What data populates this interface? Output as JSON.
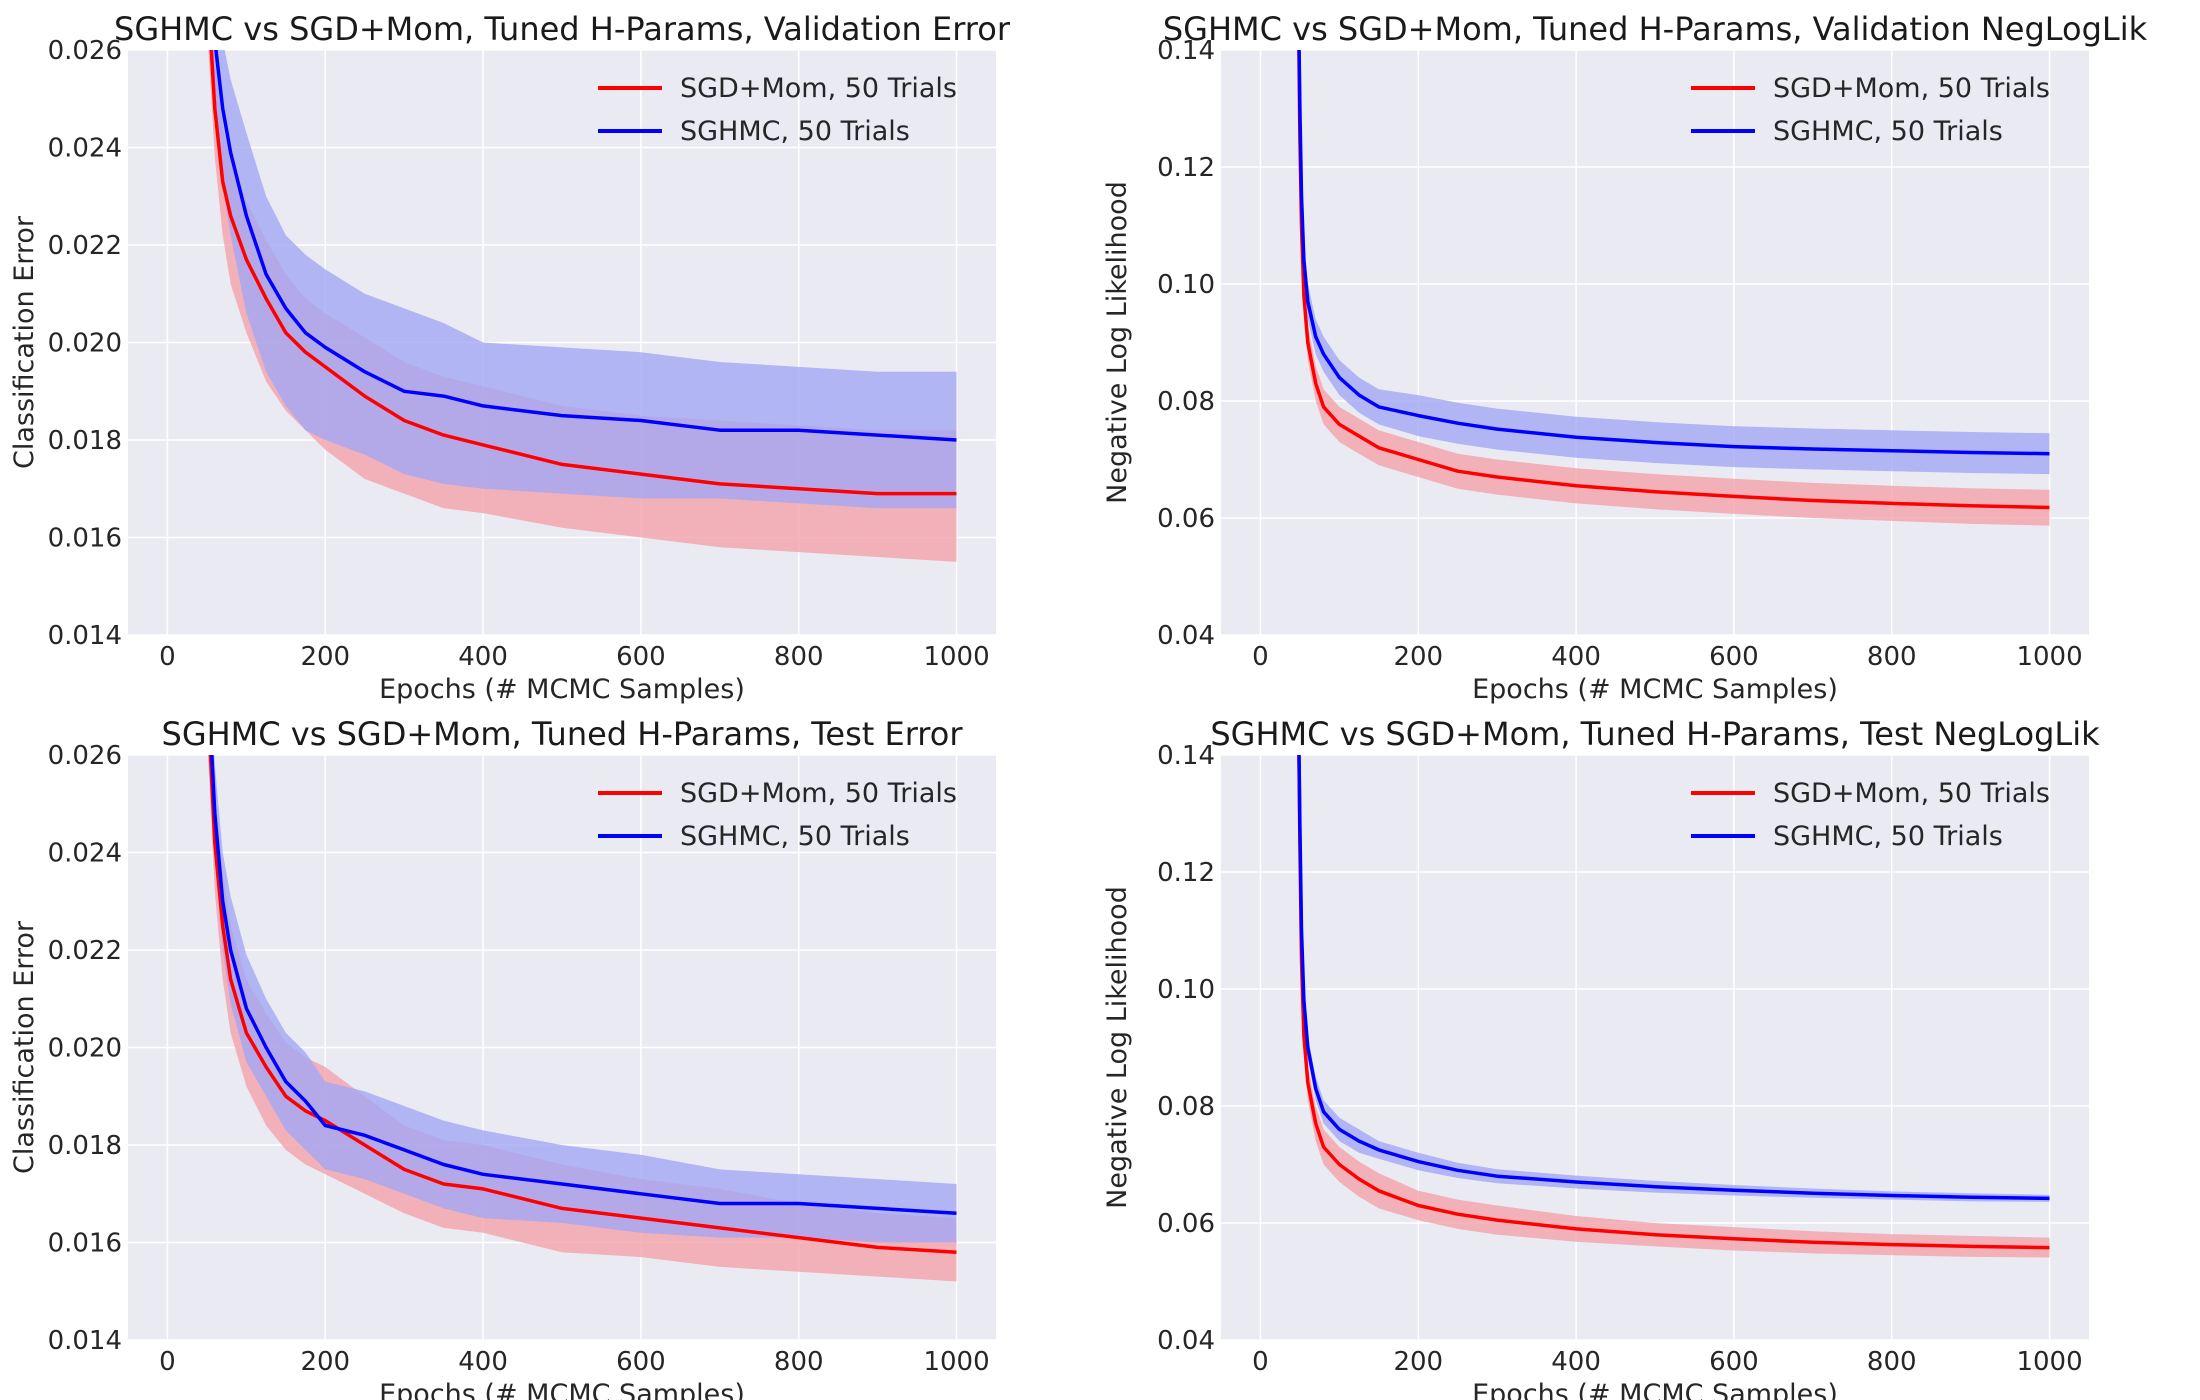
{
  "colors": {
    "panel_background": "#eaeaf2",
    "grid": "#ffffff",
    "sgd_line": "#ff0000",
    "sgd_band": "#f4a3aa",
    "sghmc_line": "#0000ff",
    "sghmc_band": "#a3a8f4"
  },
  "chart_data": [
    {
      "type": "line",
      "title": "SGHMC vs SGD+Mom, Tuned H-Params, Validation Error",
      "xlabel": "Epochs (# MCMC Samples)",
      "ylabel": "Classification Error",
      "xlim": [
        -50,
        1050
      ],
      "ylim": [
        0.014,
        0.026
      ],
      "xticks": [
        0,
        200,
        400,
        600,
        800,
        1000
      ],
      "xtick_labels": [
        "0",
        "200",
        "400",
        "600",
        "800",
        "1000"
      ],
      "yticks": [
        0.014,
        0.016,
        0.018,
        0.02,
        0.022,
        0.024,
        0.026
      ],
      "ytick_labels": [
        "0.014",
        "0.016",
        "0.018",
        "0.020",
        "0.022",
        "0.024",
        "0.026"
      ],
      "grid": true,
      "legend_position": "top-right",
      "x": [
        50,
        60,
        70,
        80,
        100,
        125,
        150,
        175,
        200,
        250,
        300,
        350,
        400,
        500,
        600,
        700,
        800,
        900,
        1000
      ],
      "series": [
        {
          "name": "SGD+Mom, 50 Trials",
          "color": "#ff0000",
          "band_color": "#f4a3aa",
          "values": [
            0.0275,
            0.0248,
            0.0233,
            0.0226,
            0.0217,
            0.0209,
            0.0202,
            0.0198,
            0.0195,
            0.0189,
            0.0184,
            0.0181,
            0.0179,
            0.0175,
            0.0173,
            0.0171,
            0.017,
            0.0169,
            0.0169
          ],
          "band_lower": [
            0.0265,
            0.0238,
            0.0222,
            0.0212,
            0.0202,
            0.0192,
            0.0186,
            0.0182,
            0.0178,
            0.0172,
            0.0169,
            0.0166,
            0.0165,
            0.0162,
            0.016,
            0.0158,
            0.0157,
            0.0156,
            0.0155
          ],
          "band_upper": [
            0.0285,
            0.0258,
            0.0244,
            0.0238,
            0.0229,
            0.0221,
            0.0214,
            0.0209,
            0.0206,
            0.0201,
            0.0196,
            0.0193,
            0.0191,
            0.0187,
            0.0185,
            0.0184,
            0.0183,
            0.0182,
            0.0182
          ]
        },
        {
          "name": "SGHMC, 50 Trials",
          "color": "#0000ff",
          "band_color": "#a3a8f4",
          "values": [
            0.0285,
            0.0262,
            0.0248,
            0.0239,
            0.0226,
            0.0214,
            0.0207,
            0.0202,
            0.0199,
            0.0194,
            0.019,
            0.0189,
            0.0187,
            0.0185,
            0.0184,
            0.0182,
            0.0182,
            0.0181,
            0.018
          ],
          "band_lower": [
            0.027,
            0.0248,
            0.0232,
            0.0222,
            0.0206,
            0.0194,
            0.0187,
            0.0182,
            0.018,
            0.0177,
            0.0173,
            0.0171,
            0.017,
            0.0169,
            0.0168,
            0.0168,
            0.0167,
            0.0166,
            0.0166
          ],
          "band_upper": [
            0.03,
            0.0276,
            0.0262,
            0.0254,
            0.0243,
            0.023,
            0.0222,
            0.0218,
            0.0215,
            0.021,
            0.0207,
            0.0204,
            0.02,
            0.0199,
            0.0198,
            0.0196,
            0.0195,
            0.0194,
            0.0194
          ]
        }
      ]
    },
    {
      "type": "line",
      "title": "SGHMC vs SGD+Mom, Tuned H-Params, Validation NegLogLik",
      "xlabel": "Epochs (# MCMC Samples)",
      "ylabel": "Negative Log Likelihood",
      "xlim": [
        -50,
        1050
      ],
      "ylim": [
        0.04,
        0.14
      ],
      "xticks": [
        0,
        200,
        400,
        600,
        800,
        1000
      ],
      "xtick_labels": [
        "0",
        "200",
        "400",
        "600",
        "800",
        "1000"
      ],
      "yticks": [
        0.04,
        0.06,
        0.08,
        0.1,
        0.12,
        0.14
      ],
      "ytick_labels": [
        "0.04",
        "0.06",
        "0.08",
        "0.10",
        "0.12",
        "0.14"
      ],
      "grid": true,
      "legend_position": "top-right",
      "x": [
        48,
        50,
        52,
        55,
        60,
        70,
        80,
        100,
        125,
        150,
        200,
        250,
        300,
        400,
        500,
        600,
        700,
        800,
        900,
        1000
      ],
      "series": [
        {
          "name": "SGD+Mom, 50 Trials",
          "color": "#ff0000",
          "band_color": "#f4a3aa",
          "values": [
            0.15,
            0.125,
            0.11,
            0.098,
            0.09,
            0.083,
            0.079,
            0.076,
            0.074,
            0.072,
            0.07,
            0.068,
            0.067,
            0.0655,
            0.0645,
            0.0637,
            0.063,
            0.0625,
            0.0621,
            0.0618
          ],
          "band_lower": [
            0.145,
            0.12,
            0.105,
            0.094,
            0.087,
            0.08,
            0.076,
            0.073,
            0.071,
            0.069,
            0.067,
            0.065,
            0.064,
            0.0625,
            0.0615,
            0.0607,
            0.06,
            0.0595,
            0.059,
            0.0587
          ],
          "band_upper": [
            0.155,
            0.13,
            0.115,
            0.102,
            0.093,
            0.086,
            0.082,
            0.079,
            0.077,
            0.075,
            0.073,
            0.071,
            0.07,
            0.0685,
            0.0675,
            0.0667,
            0.066,
            0.0655,
            0.0651,
            0.0648
          ]
        },
        {
          "name": "SGHMC, 50 Trials",
          "color": "#0000ff",
          "band_color": "#a3a8f4",
          "values": [
            0.15,
            0.13,
            0.115,
            0.104,
            0.097,
            0.091,
            0.088,
            0.084,
            0.081,
            0.079,
            0.0775,
            0.0762,
            0.0752,
            0.0738,
            0.0729,
            0.0722,
            0.0718,
            0.0715,
            0.0712,
            0.071
          ],
          "band_lower": [
            0.145,
            0.125,
            0.11,
            0.1,
            0.094,
            0.088,
            0.085,
            0.081,
            0.078,
            0.076,
            0.074,
            0.0727,
            0.0717,
            0.0703,
            0.0694,
            0.0687,
            0.0683,
            0.068,
            0.0677,
            0.0675
          ],
          "band_upper": [
            0.155,
            0.135,
            0.12,
            0.108,
            0.1,
            0.094,
            0.091,
            0.087,
            0.084,
            0.082,
            0.081,
            0.0797,
            0.0787,
            0.0773,
            0.0764,
            0.0757,
            0.0753,
            0.075,
            0.0747,
            0.0745
          ]
        }
      ]
    },
    {
      "type": "line",
      "title": "SGHMC vs SGD+Mom, Tuned H-Params, Test Error",
      "xlabel": "Epochs (# MCMC Samples)",
      "ylabel": "Classification Error",
      "xlim": [
        -50,
        1050
      ],
      "ylim": [
        0.014,
        0.026
      ],
      "xticks": [
        0,
        200,
        400,
        600,
        800,
        1000
      ],
      "xtick_labels": [
        "0",
        "200",
        "400",
        "600",
        "800",
        "1000"
      ],
      "yticks": [
        0.014,
        0.016,
        0.018,
        0.02,
        0.022,
        0.024,
        0.026
      ],
      "ytick_labels": [
        "0.014",
        "0.016",
        "0.018",
        "0.020",
        "0.022",
        "0.024",
        "0.026"
      ],
      "grid": true,
      "legend_position": "top-right",
      "x": [
        50,
        60,
        70,
        80,
        100,
        125,
        150,
        175,
        200,
        250,
        300,
        350,
        400,
        500,
        600,
        700,
        800,
        900,
        1000
      ],
      "series": [
        {
          "name": "SGD+Mom, 50 Trials",
          "color": "#ff0000",
          "band_color": "#f4a3aa",
          "values": [
            0.0275,
            0.0242,
            0.0225,
            0.0214,
            0.0203,
            0.0196,
            0.019,
            0.0187,
            0.0185,
            0.018,
            0.0175,
            0.0172,
            0.0171,
            0.0167,
            0.0165,
            0.0163,
            0.0161,
            0.0159,
            0.0158
          ],
          "band_lower": [
            0.0265,
            0.0232,
            0.0214,
            0.0203,
            0.0192,
            0.0184,
            0.0179,
            0.0176,
            0.0174,
            0.017,
            0.0166,
            0.0163,
            0.0162,
            0.0158,
            0.0157,
            0.0155,
            0.0154,
            0.0153,
            0.0152
          ],
          "band_upper": [
            0.0285,
            0.0252,
            0.0236,
            0.0225,
            0.0214,
            0.0207,
            0.0201,
            0.0198,
            0.0196,
            0.019,
            0.0184,
            0.0181,
            0.018,
            0.0176,
            0.0173,
            0.0171,
            0.0168,
            0.0166,
            0.0165
          ]
        },
        {
          "name": "SGHMC, 50 Trials",
          "color": "#0000ff",
          "band_color": "#a3a8f4",
          "values": [
            0.028,
            0.0248,
            0.023,
            0.022,
            0.0208,
            0.02,
            0.0193,
            0.0189,
            0.0184,
            0.0182,
            0.0179,
            0.0176,
            0.0174,
            0.0172,
            0.017,
            0.0168,
            0.0168,
            0.0167,
            0.0166
          ],
          "band_lower": [
            0.027,
            0.0238,
            0.022,
            0.0209,
            0.0197,
            0.019,
            0.0183,
            0.0179,
            0.0175,
            0.0173,
            0.017,
            0.0167,
            0.0165,
            0.0164,
            0.0162,
            0.0161,
            0.0161,
            0.016,
            0.016
          ],
          "band_upper": [
            0.029,
            0.0258,
            0.024,
            0.0231,
            0.0219,
            0.021,
            0.0203,
            0.0199,
            0.0193,
            0.0191,
            0.0188,
            0.0185,
            0.0183,
            0.018,
            0.0178,
            0.0175,
            0.0174,
            0.0173,
            0.0172
          ]
        }
      ]
    },
    {
      "type": "line",
      "title": "SGHMC vs SGD+Mom, Tuned H-Params, Test NegLogLik",
      "xlabel": "Epochs (# MCMC Samples)",
      "ylabel": "Negative Log Likelihood",
      "xlim": [
        -50,
        1050
      ],
      "ylim": [
        0.04,
        0.14
      ],
      "xticks": [
        0,
        200,
        400,
        600,
        800,
        1000
      ],
      "xtick_labels": [
        "0",
        "200",
        "400",
        "600",
        "800",
        "1000"
      ],
      "yticks": [
        0.04,
        0.06,
        0.08,
        0.1,
        0.12,
        0.14
      ],
      "ytick_labels": [
        "0.04",
        "0.06",
        "0.08",
        "0.10",
        "0.12",
        "0.14"
      ],
      "grid": true,
      "legend_position": "top-right",
      "x": [
        48,
        50,
        52,
        55,
        60,
        70,
        80,
        100,
        125,
        150,
        200,
        250,
        300,
        400,
        500,
        600,
        700,
        800,
        900,
        1000
      ],
      "series": [
        {
          "name": "SGD+Mom, 50 Trials",
          "color": "#ff0000",
          "band_color": "#f4a3aa",
          "values": [
            0.15,
            0.125,
            0.105,
            0.092,
            0.084,
            0.077,
            0.073,
            0.07,
            0.0675,
            0.0655,
            0.063,
            0.0615,
            0.0605,
            0.059,
            0.058,
            0.0573,
            0.0567,
            0.0563,
            0.056,
            0.0558
          ],
          "band_lower": [
            0.146,
            0.121,
            0.101,
            0.089,
            0.081,
            0.074,
            0.07,
            0.067,
            0.0645,
            0.0625,
            0.0605,
            0.059,
            0.058,
            0.0568,
            0.056,
            0.0553,
            0.0548,
            0.0545,
            0.0542,
            0.0541
          ],
          "band_upper": [
            0.154,
            0.129,
            0.109,
            0.095,
            0.087,
            0.08,
            0.076,
            0.073,
            0.0705,
            0.0685,
            0.0655,
            0.064,
            0.063,
            0.0612,
            0.06,
            0.0593,
            0.0586,
            0.0581,
            0.0578,
            0.0575
          ]
        },
        {
          "name": "SGHMC, 50 Trials",
          "color": "#0000ff",
          "band_color": "#a3a8f4",
          "values": [
            0.15,
            0.128,
            0.11,
            0.098,
            0.09,
            0.083,
            0.079,
            0.076,
            0.074,
            0.0725,
            0.0705,
            0.069,
            0.068,
            0.067,
            0.0662,
            0.0656,
            0.0651,
            0.0647,
            0.0644,
            0.0642
          ],
          "band_lower": [
            0.146,
            0.125,
            0.107,
            0.096,
            0.088,
            0.081,
            0.077,
            0.074,
            0.072,
            0.071,
            0.069,
            0.0677,
            0.0668,
            0.0659,
            0.0652,
            0.0647,
            0.0643,
            0.064,
            0.0637,
            0.0636
          ],
          "band_upper": [
            0.154,
            0.131,
            0.113,
            0.1,
            0.092,
            0.085,
            0.081,
            0.078,
            0.076,
            0.074,
            0.072,
            0.0703,
            0.0692,
            0.0681,
            0.0672,
            0.0665,
            0.0659,
            0.0654,
            0.0651,
            0.0648
          ]
        }
      ]
    }
  ]
}
